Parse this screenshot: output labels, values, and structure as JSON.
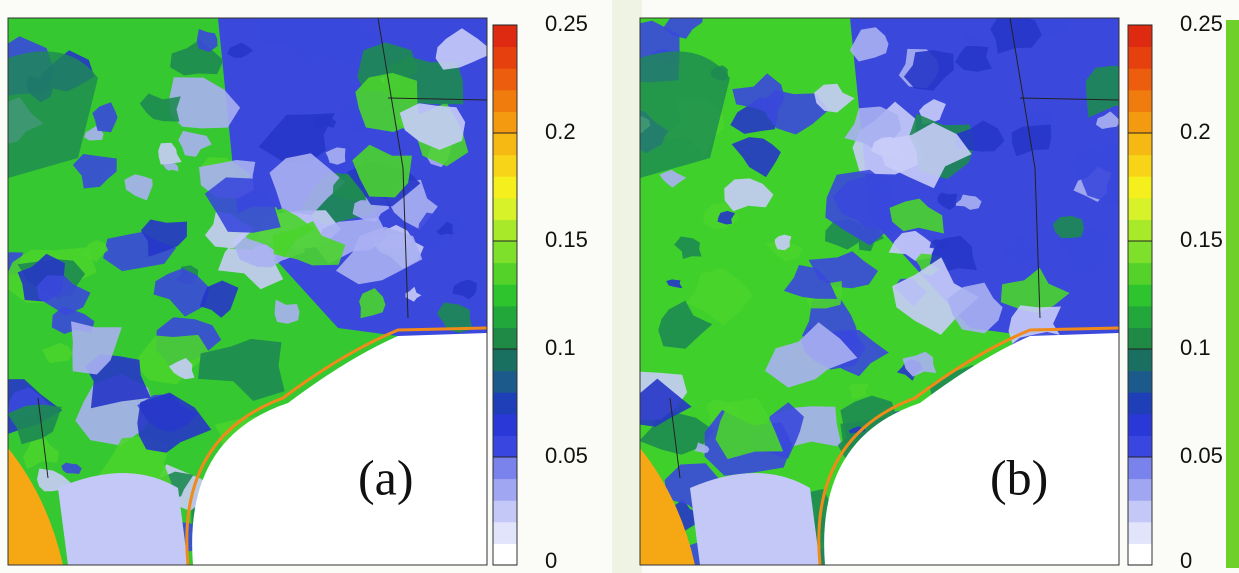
{
  "panels": [
    {
      "label": "(a)"
    },
    {
      "label": "(b)"
    }
  ],
  "colorbar": {
    "range": [
      0,
      0.25
    ],
    "ticks": [
      0,
      0.05,
      0.1,
      0.15,
      0.2,
      0.25
    ],
    "colors": [
      "#ffffff",
      "#e2e4fb",
      "#c4c8f7",
      "#a0a6f2",
      "#7a82ec",
      "#3a46e0",
      "#2a38d8",
      "#1f3fb8",
      "#1c5a8c",
      "#1a7060",
      "#1f8a46",
      "#22a83a",
      "#2ec42e",
      "#55d22a",
      "#7ee02a",
      "#a8ea2a",
      "#d8f22a",
      "#f6ef1e",
      "#f8d418",
      "#f6b812",
      "#f49a10",
      "#f07c0e",
      "#ec5e0e",
      "#e6400e",
      "#de2a10"
    ]
  }
}
